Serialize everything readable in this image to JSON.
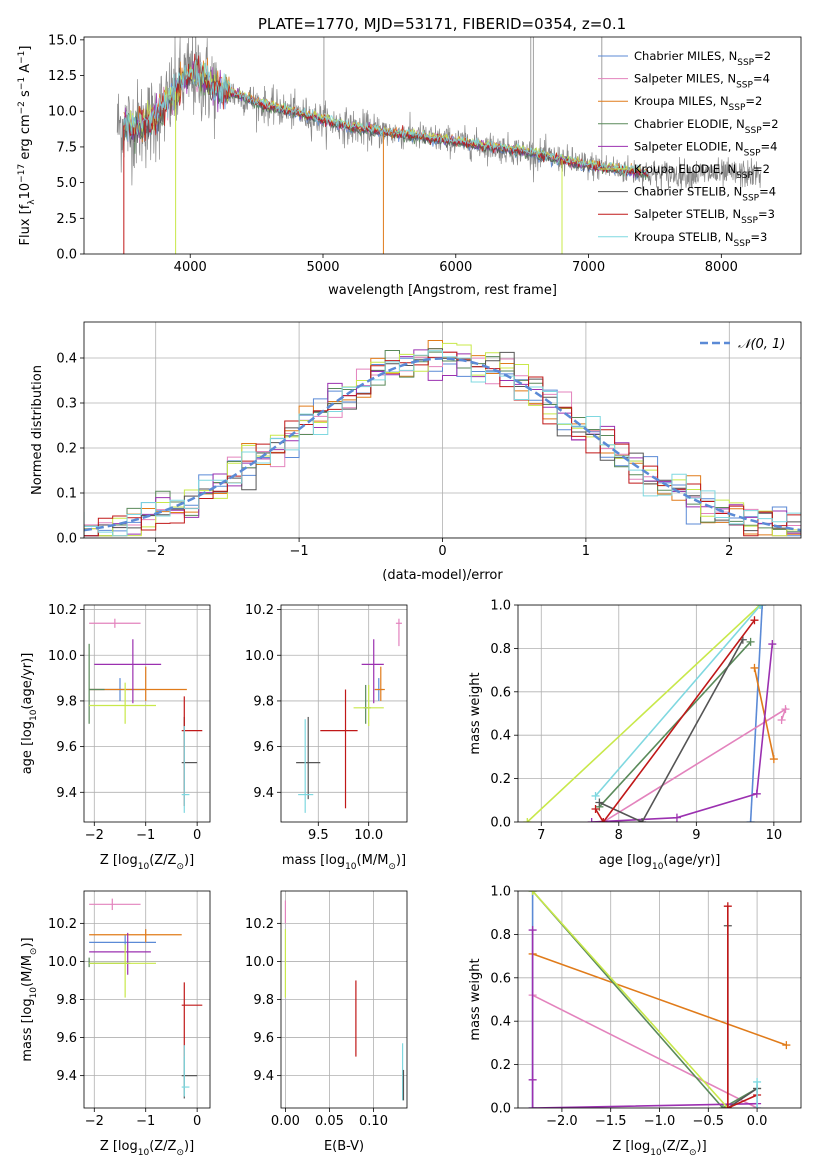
{
  "title": "PLATE=1770, MJD=53171, FIBERID=0354, z=0.1",
  "colors": {
    "chabrier_miles": "#5b8ad6",
    "salpeter_miles": "#e383bd",
    "kroupa_miles": "#e07b1a",
    "chabrier_elodie": "#5a8a5a",
    "salpeter_elodie": "#9b30b0",
    "kroupa_elodie": "#c8e84a",
    "chabrier_stelib": "#555555",
    "salpeter_stelib": "#c01818",
    "kroupa_stelib": "#7fd8e0",
    "data": "#888888",
    "gauss": "#5b8ad6"
  },
  "chart_data": [
    {
      "id": "spectrum",
      "type": "line",
      "xlabel": "wavelength [Angstrom, rest frame]",
      "ylabel": "Flux [f",
      "ylabel_parts": [
        "Flux [f",
        "λ",
        "10",
        "−17",
        " erg cm",
        "−2",
        " s",
        "−1",
        " A",
        "−1",
        "]"
      ],
      "xlim": [
        3200,
        8600
      ],
      "ylim": [
        0,
        15.2
      ],
      "xticks": [
        4000,
        5000,
        6000,
        7000,
        8000
      ],
      "yticks": [
        "0.0",
        "2.5",
        "5.0",
        "7.5",
        "10.0",
        "12.5",
        "15.0"
      ],
      "legend": [
        {
          "label": "Chabrier MILES, N",
          "n": "2",
          "color_key": "chabrier_miles"
        },
        {
          "label": "Salpeter MILES, N",
          "n": "4",
          "color_key": "salpeter_miles"
        },
        {
          "label": "Kroupa MILES, N",
          "n": "2",
          "color_key": "kroupa_miles"
        },
        {
          "label": "Chabrier ELODIE, N",
          "n": "2",
          "color_key": "chabrier_elodie"
        },
        {
          "label": "Salpeter ELODIE, N",
          "n": "4",
          "color_key": "salpeter_elodie"
        },
        {
          "label": "Kroupa ELODIE, N",
          "n": "2",
          "color_key": "kroupa_elodie"
        },
        {
          "label": "Chabrier STELIB, N",
          "n": "4",
          "color_key": "chabrier_stelib"
        },
        {
          "label": "Salpeter STELIB, N",
          "n": "3",
          "color_key": "salpeter_stelib"
        },
        {
          "label": "Kroupa STELIB, N",
          "n": "3",
          "color_key": "kroupa_stelib"
        }
      ],
      "legend_sub": "SSP",
      "legend_location": "right",
      "continuum": {
        "x": [
          3500,
          3600,
          3700,
          3800,
          3900,
          4000,
          4100,
          4200,
          4300,
          4400,
          4500,
          4600,
          4800,
          5000,
          5200,
          5500,
          6000,
          6500,
          7000,
          7500
        ],
        "y": [
          9.0,
          9.0,
          9.3,
          10.2,
          11.5,
          12.6,
          12.3,
          11.6,
          11.3,
          11.0,
          10.6,
          10.3,
          9.9,
          9.4,
          8.9,
          8.5,
          7.9,
          7.2,
          6.2,
          5.6
        ]
      },
      "data_extra_line_x": [
        6565,
        6584,
        5007,
        7100
      ],
      "model_drop_lines": [
        {
          "x": 3500,
          "color_key": "salpeter_stelib"
        },
        {
          "x": 3890,
          "color_key": "kroupa_elodie"
        },
        {
          "x": 5455,
          "color_key": "kroupa_miles"
        },
        {
          "x": 6800,
          "color_key": "kroupa_elodie"
        }
      ]
    },
    {
      "id": "residuals",
      "type": "histogram",
      "xlabel": "(data-model)/error",
      "ylabel": "Normed distribution",
      "xlim": [
        -2.5,
        2.5
      ],
      "ylim": [
        0,
        0.48
      ],
      "xticks": [
        "−2",
        "−1",
        "0",
        "1",
        "2"
      ],
      "yticks": [
        "0.0",
        "0.1",
        "0.2",
        "0.3",
        "0.4"
      ],
      "legend": "𝒩(0, 1)",
      "legend_location": "upper right",
      "gaussian": {
        "mean": 0,
        "sigma": 1
      }
    },
    {
      "id": "age_vs_Z",
      "type": "scatter",
      "xlabel": "Z [log",
      "xlabel_parts": [
        "Z [log",
        "10",
        "(Z/Z",
        "⊙",
        ")]"
      ],
      "ylabel_parts": [
        "age  [log",
        "10",
        "(age/yr)]"
      ],
      "xlim": [
        -2.2,
        0.25
      ],
      "ylim": [
        9.27,
        10.22
      ],
      "xticks": [
        "−2",
        "−1",
        "0"
      ],
      "yticks": [
        "9.4",
        "9.6",
        "9.8",
        "10.0",
        "10.2"
      ],
      "points": [
        {
          "color_key": "chabrier_miles",
          "x": -1.5,
          "xerr": [
            0.6,
            0.5
          ],
          "y": 9.85,
          "yerr": [
            0.05,
            0.05
          ]
        },
        {
          "color_key": "salpeter_miles",
          "x": -1.6,
          "xerr": [
            0.5,
            0.5
          ],
          "y": 10.14,
          "yerr": [
            0.02,
            0.02
          ]
        },
        {
          "color_key": "kroupa_miles",
          "x": -1.0,
          "xerr": [
            1.1,
            0.8
          ],
          "y": 9.85,
          "yerr": [
            0.05,
            0.1
          ]
        },
        {
          "color_key": "chabrier_elodie",
          "x": -2.1,
          "xerr": [
            0.0,
            0.3
          ],
          "y": 9.85,
          "yerr": [
            0.15,
            0.2
          ]
        },
        {
          "color_key": "salpeter_elodie",
          "x": -1.25,
          "xerr": [
            0.75,
            0.55
          ],
          "y": 9.96,
          "yerr": [
            0.17,
            0.11
          ]
        },
        {
          "color_key": "kroupa_elodie",
          "x": -1.4,
          "xerr": [
            0.7,
            0.6
          ],
          "y": 9.78,
          "yerr": [
            0.08,
            0.1
          ]
        },
        {
          "color_key": "chabrier_stelib",
          "x": -0.25,
          "xerr": [
            0.05,
            0.25
          ],
          "y": 9.53,
          "yerr": [
            0.12,
            0.2
          ]
        },
        {
          "color_key": "salpeter_stelib",
          "x": -0.25,
          "xerr": [
            0.05,
            0.35
          ],
          "y": 9.67,
          "yerr": [
            0.33,
            0.15
          ]
        },
        {
          "color_key": "kroupa_stelib",
          "x": -0.25,
          "xerr": [
            0.05,
            0.1
          ],
          "y": 9.39,
          "yerr": [
            0.08,
            0.3
          ]
        }
      ]
    },
    {
      "id": "age_vs_mass",
      "type": "scatter",
      "xlabel_parts": [
        "mass [log",
        "10",
        "(M/M",
        "⊙",
        ")]"
      ],
      "xlim": [
        9.13,
        10.38
      ],
      "ylim": [
        9.27,
        10.22
      ],
      "xticks": [
        "9.5",
        "10.0"
      ],
      "yticks": [
        "9.4",
        "9.6",
        "9.8",
        "10.0",
        "10.2"
      ],
      "points": [
        {
          "color_key": "chabrier_miles",
          "x": 10.1,
          "xerr": [
            0.04,
            0.04
          ],
          "y": 9.85,
          "yerr": [
            0.05,
            0.05
          ]
        },
        {
          "color_key": "salpeter_miles",
          "x": 10.3,
          "xerr": [
            0.03,
            0.03
          ],
          "y": 10.14,
          "yerr": [
            0.1,
            0.02
          ]
        },
        {
          "color_key": "kroupa_miles",
          "x": 10.12,
          "xerr": [
            0.06,
            0.04
          ],
          "y": 9.85,
          "yerr": [
            0.05,
            0.1
          ]
        },
        {
          "color_key": "chabrier_elodie",
          "x": 9.97,
          "xerr": [
            0.02,
            0.05
          ],
          "y": 9.77,
          "yerr": [
            0.07,
            0.1
          ]
        },
        {
          "color_key": "salpeter_elodie",
          "x": 10.05,
          "xerr": [
            0.12,
            0.1
          ],
          "y": 9.96,
          "yerr": [
            0.17,
            0.11
          ]
        },
        {
          "color_key": "kroupa_elodie",
          "x": 10.0,
          "xerr": [
            0.15,
            0.15
          ],
          "y": 9.77,
          "yerr": [
            0.08,
            0.1
          ]
        },
        {
          "color_key": "chabrier_stelib",
          "x": 9.4,
          "xerr": [
            0.12,
            0.12
          ],
          "y": 9.53,
          "yerr": [
            0.16,
            0.2
          ]
        },
        {
          "color_key": "salpeter_stelib",
          "x": 9.77,
          "xerr": [
            0.25,
            0.12
          ],
          "y": 9.67,
          "yerr": [
            0.34,
            0.18
          ]
        },
        {
          "color_key": "kroupa_stelib",
          "x": 9.37,
          "xerr": [
            0.07,
            0.08
          ],
          "y": 9.39,
          "yerr": [
            0.08,
            0.33
          ]
        }
      ]
    },
    {
      "id": "weight_vs_age",
      "type": "line",
      "xlabel_parts": [
        "age  [log",
        "10",
        "(age/yr)]"
      ],
      "ylabel": "mass weight",
      "xlim": [
        6.7,
        10.35
      ],
      "ylim": [
        0,
        1.0
      ],
      "xticks": [
        "7",
        "8",
        "9",
        "10"
      ],
      "yticks": [
        "0.0",
        "0.2",
        "0.4",
        "0.6",
        "0.8",
        "1.0"
      ],
      "series": [
        {
          "color_key": "chabrier_miles",
          "x": [
            9.7,
            9.85
          ],
          "y": [
            0.0,
            1.0
          ]
        },
        {
          "color_key": "salpeter_miles",
          "x": [
            7.8,
            10.15,
            10.1
          ],
          "y": [
            0.0,
            0.52,
            0.47
          ]
        },
        {
          "color_key": "kroupa_miles",
          "x": [
            9.75,
            10.0
          ],
          "y": [
            0.71,
            0.29
          ]
        },
        {
          "color_key": "chabrier_elodie",
          "x": [
            7.75,
            9.7
          ],
          "y": [
            0.07,
            0.83
          ]
        },
        {
          "color_key": "salpeter_elodie",
          "x": [
            7.65,
            8.75,
            9.78,
            9.98
          ],
          "y": [
            0.0,
            0.02,
            0.13,
            0.82
          ]
        },
        {
          "color_key": "kroupa_elodie",
          "x": [
            6.82,
            9.82
          ],
          "y": [
            0.0,
            1.0
          ]
        },
        {
          "color_key": "chabrier_stelib",
          "x": [
            7.75,
            8.3,
            9.6
          ],
          "y": [
            0.09,
            0.0,
            0.84
          ]
        },
        {
          "color_key": "salpeter_stelib",
          "x": [
            7.7,
            7.8,
            9.75
          ],
          "y": [
            0.06,
            0.0,
            0.93
          ]
        },
        {
          "color_key": "kroupa_stelib",
          "x": [
            7.7,
            9.83
          ],
          "y": [
            0.12,
            1.0
          ]
        }
      ]
    },
    {
      "id": "mass_vs_Z",
      "type": "scatter",
      "xlabel_parts": [
        "Z [log",
        "10",
        "(Z/Z",
        "⊙",
        ")]"
      ],
      "ylabel_parts": [
        "mass [log",
        "10",
        "(M/M",
        "⊙",
        ")]"
      ],
      "xlim": [
        -2.2,
        0.25
      ],
      "ylim": [
        9.23,
        10.37
      ],
      "xticks": [
        "−2",
        "−1",
        "0"
      ],
      "yticks": [
        "9.4",
        "9.6",
        "9.8",
        "10.0",
        "10.2"
      ],
      "points": [
        {
          "color_key": "chabrier_miles",
          "x": -1.4,
          "xerr": [
            0.7,
            0.6
          ],
          "y": 10.1,
          "yerr": [
            0.04,
            0.04
          ]
        },
        {
          "color_key": "salpeter_miles",
          "x": -1.65,
          "xerr": [
            0.45,
            0.55
          ],
          "y": 10.3,
          "yerr": [
            0.03,
            0.03
          ]
        },
        {
          "color_key": "kroupa_miles",
          "x": -1.0,
          "xerr": [
            1.1,
            0.7
          ],
          "y": 10.14,
          "yerr": [
            0.04,
            0.03
          ]
        },
        {
          "color_key": "chabrier_elodie",
          "x": -2.1,
          "xerr": [
            0.0,
            0.8
          ],
          "y": 9.99,
          "yerr": [
            0.02,
            0.03
          ]
        },
        {
          "color_key": "salpeter_elodie",
          "x": -1.35,
          "xerr": [
            0.75,
            0.45
          ],
          "y": 10.05,
          "yerr": [
            0.12,
            0.1
          ]
        },
        {
          "color_key": "kroupa_elodie",
          "x": -1.4,
          "xerr": [
            0.7,
            0.6
          ],
          "y": 9.99,
          "yerr": [
            0.18,
            0.1
          ]
        },
        {
          "color_key": "chabrier_stelib",
          "x": -0.25,
          "xerr": [
            0.05,
            0.25
          ],
          "y": 9.4,
          "yerr": [
            0.12,
            0.1
          ]
        },
        {
          "color_key": "salpeter_stelib",
          "x": -0.25,
          "xerr": [
            0.05,
            0.35
          ],
          "y": 9.77,
          "yerr": [
            0.27,
            0.12
          ]
        },
        {
          "color_key": "kroupa_stelib",
          "x": -0.25,
          "xerr": [
            0.05,
            0.1
          ],
          "y": 9.34,
          "yerr": [
            0.05,
            0.22
          ]
        }
      ]
    },
    {
      "id": "mass_vs_ebv",
      "type": "scatter",
      "xlabel": "E(B-V)",
      "xlim": [
        -0.005,
        0.138
      ],
      "ylim": [
        9.23,
        10.37
      ],
      "xticks": [
        "0.00",
        "0.05",
        "0.10"
      ],
      "yticks": [
        "9.4",
        "9.6",
        "9.8",
        "10.0",
        "10.2"
      ],
      "points": [
        {
          "color_key": "salpeter_miles",
          "x": 0.0,
          "xerr": [
            0,
            0
          ],
          "y": 10.25,
          "yerr": [
            0.05,
            0.07
          ]
        },
        {
          "color_key": "kroupa_elodie",
          "x": 0.0,
          "xerr": [
            0,
            0
          ],
          "y": 9.99,
          "yerr": [
            0.18,
            0.18
          ]
        },
        {
          "color_key": "salpeter_stelib",
          "x": 0.08,
          "xerr": [
            0,
            0
          ],
          "y": 9.7,
          "yerr": [
            0.2,
            0.2
          ]
        },
        {
          "color_key": "kroupa_stelib",
          "x": 0.133,
          "xerr": [
            0,
            0
          ],
          "y": 9.42,
          "yerr": [
            0.15,
            0.15
          ]
        },
        {
          "color_key": "chabrier_stelib",
          "x": 0.134,
          "xerr": [
            0,
            0
          ],
          "y": 9.35,
          "yerr": [
            0.08,
            0.08
          ]
        }
      ]
    },
    {
      "id": "weight_vs_Z",
      "type": "line",
      "xlabel_parts": [
        "Z [log",
        "10",
        "(Z/Z",
        "⊙",
        ")]"
      ],
      "ylabel": "mass weight",
      "xlim": [
        -2.45,
        0.45
      ],
      "ylim": [
        0,
        1.0
      ],
      "xticks": [
        "−2.0",
        "−1.5",
        "−1.0",
        "−0.5",
        "0.0"
      ],
      "yticks": [
        "0.0",
        "0.2",
        "0.4",
        "0.6",
        "0.8",
        "1.0"
      ],
      "series": [
        {
          "color_key": "chabrier_miles",
          "x": [
            -2.3,
            -2.3
          ],
          "y": [
            0.0,
            1.0
          ]
        },
        {
          "color_key": "salpeter_miles",
          "x": [
            -2.3,
            0.0
          ],
          "y": [
            0.52,
            0.0
          ]
        },
        {
          "color_key": "kroupa_miles",
          "x": [
            -2.3,
            0.3
          ],
          "y": [
            0.71,
            0.29
          ]
        },
        {
          "color_key": "chabrier_elodie",
          "x": [
            -2.3,
            -0.35,
            0.0
          ],
          "y": [
            1.0,
            0.0,
            0.09
          ]
        },
        {
          "color_key": "salpeter_elodie",
          "x": [
            -2.3,
            -2.3,
            -2.3,
            0.0
          ],
          "y": [
            0.13,
            0.82,
            0.0,
            0.02
          ]
        },
        {
          "color_key": "kroupa_elodie",
          "x": [
            -2.3,
            -0.3
          ],
          "y": [
            1.0,
            0.0
          ]
        },
        {
          "color_key": "chabrier_stelib",
          "x": [
            -0.3,
            -0.3,
            0.0
          ],
          "y": [
            0.84,
            0.0,
            0.09
          ]
        },
        {
          "color_key": "salpeter_stelib",
          "x": [
            -0.3,
            -0.3,
            0.0
          ],
          "y": [
            0.93,
            0.0,
            0.06
          ]
        },
        {
          "color_key": "kroupa_stelib",
          "x": [
            0.0,
            0.0
          ],
          "y": [
            0.12,
            0.0
          ]
        }
      ]
    }
  ]
}
